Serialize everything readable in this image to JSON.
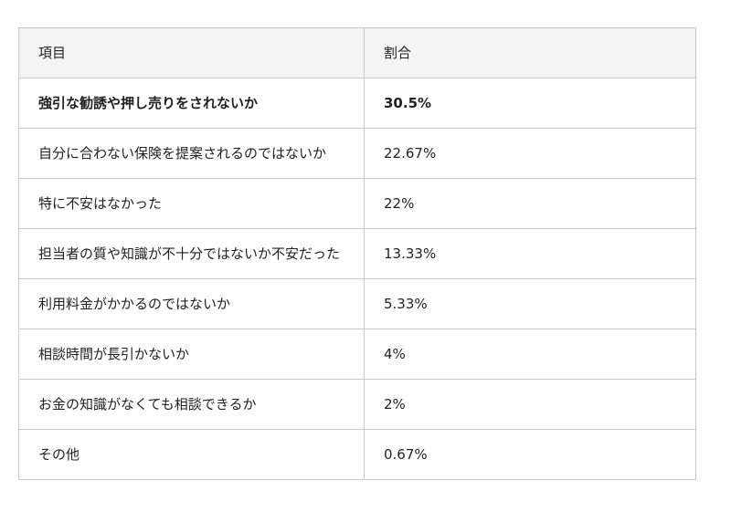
{
  "table": {
    "header": [
      "項目",
      "割合"
    ],
    "rows": [
      [
        "強引な勧誘や押し売りをされないか",
        "30.5%"
      ],
      [
        "自分に合わない保険を提案されるのではないか",
        "22.67%"
      ],
      [
        "特に不安はなかった",
        "22%"
      ],
      [
        "担当者の質や知識が不十分ではないか不安だった",
        "13.33%"
      ],
      [
        "利用料金がかかるのではないか",
        "5.33%"
      ],
      [
        "相談時間が長引かないか",
        "4%"
      ],
      [
        "お金の知識がなくても相談できるか",
        "2%"
      ],
      [
        "その他",
        "0.67%"
      ]
    ]
  }
}
